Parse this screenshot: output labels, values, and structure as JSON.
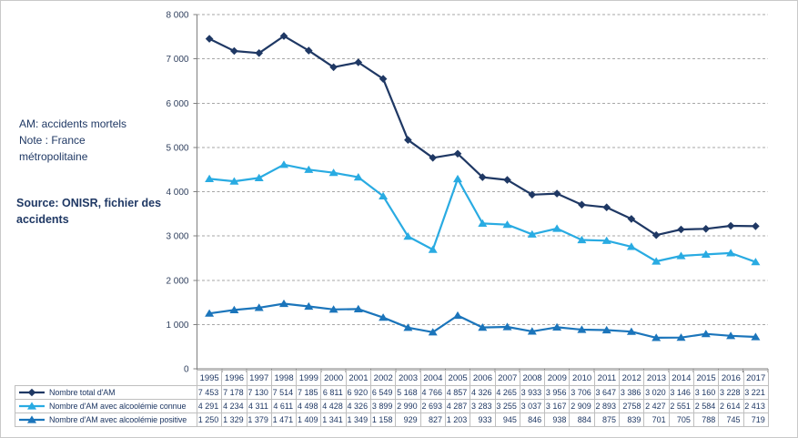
{
  "annotations": {
    "note_lines": [
      "AM: accidents mortels",
      "Note : France",
      "métropolitaine"
    ],
    "source_lines": [
      "Source: ONISR, fichier des",
      "accidents"
    ]
  },
  "colors": {
    "total_series": "#1F3864",
    "connue_series": "#29ABE2",
    "positive_series": "#1B75BB",
    "grid": "#A6A6A6",
    "axis": "#7F7F7F",
    "text": "#1F3864",
    "table_border": "#BFBFBF"
  },
  "chart_data": {
    "type": "line",
    "title": "",
    "xlabel": "",
    "ylabel": "",
    "x": [
      "1995",
      "1996",
      "1997",
      "1998",
      "1999",
      "2000",
      "2001",
      "2002",
      "2003",
      "2004",
      "2005",
      "2006",
      "2007",
      "2008",
      "2009",
      "2010",
      "2011",
      "2012",
      "2013",
      "2014",
      "2015",
      "2016",
      "2017"
    ],
    "ylim": [
      0,
      8000
    ],
    "ytick_step": 1000,
    "ytick_labels": [
      "0",
      "1 000",
      "2 000",
      "3 000",
      "4 000",
      "5 000",
      "6 000",
      "7 000",
      "8 000"
    ],
    "grid": "horizontal-dashed",
    "legend_position": "table-rows-left",
    "series": [
      {
        "name": "Nombre total d'AM",
        "color": "#1F3864",
        "marker": "diamond",
        "values": [
          7453,
          7178,
          7130,
          7514,
          7185,
          6811,
          6920,
          6549,
          5168,
          4766,
          4857,
          4326,
          4265,
          3933,
          3956,
          3706,
          3647,
          3386,
          3020,
          3146,
          3160,
          3228,
          3221
        ],
        "values_display": [
          "7 453",
          "7 178",
          "7 130",
          "7 514",
          "7 185",
          "6 811",
          "6 920",
          "6 549",
          "5 168",
          "4 766",
          "4 857",
          "4 326",
          "4 265",
          "3 933",
          "3 956",
          "3 706",
          "3 647",
          "3 386",
          "3 020",
          "3 146",
          "3 160",
          "3 228",
          "3 221"
        ]
      },
      {
        "name": "Nombre d'AM avec alcoolémie connue",
        "color": "#29ABE2",
        "marker": "triangle",
        "values": [
          4291,
          4234,
          4311,
          4611,
          4498,
          4428,
          4326,
          3899,
          2990,
          2693,
          4287,
          3283,
          3255,
          3037,
          3167,
          2909,
          2893,
          2758,
          2427,
          2551,
          2584,
          2614,
          2413
        ],
        "values_display": [
          "4 291",
          "4 234",
          "4 311",
          "4 611",
          "4 498",
          "4 428",
          "4 326",
          "3 899",
          "2 990",
          "2 693",
          "4 287",
          "3 283",
          "3 255",
          "3 037",
          "3 167",
          "2 909",
          "2 893",
          "2758",
          "2 427",
          "2 551",
          "2 584",
          "2 614",
          "2 413"
        ]
      },
      {
        "name": "Nombre d'AM avec alcoolémie positive",
        "color": "#1B75BB",
        "marker": "triangle",
        "values": [
          1250,
          1329,
          1379,
          1471,
          1409,
          1341,
          1349,
          1158,
          929,
          827,
          1203,
          933,
          945,
          846,
          938,
          884,
          875,
          839,
          701,
          705,
          788,
          745,
          719
        ],
        "values_display": [
          "1 250",
          "1 329",
          "1 379",
          "1 471",
          "1 409",
          "1 341",
          "1 349",
          "1 158",
          "929",
          "827",
          "1 203",
          "933",
          "945",
          "846",
          "938",
          "884",
          "875",
          "839",
          "701",
          "705",
          "788",
          "745",
          "719"
        ]
      }
    ]
  }
}
